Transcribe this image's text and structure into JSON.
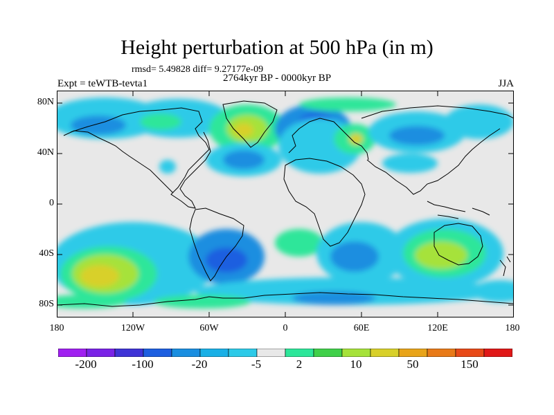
{
  "title": "Height perturbation at 500 hPa (in m)",
  "stats": "rmsd= 5.49828 diff= 9.27177e-09",
  "period": "2764kyr BP - 0000kyr BP",
  "expt": "Expt = teWTB-tevta1",
  "season": "JJA",
  "y_labels": [
    "80N",
    "40N",
    "0",
    "40S",
    "80S"
  ],
  "x_labels": [
    "180",
    "120W",
    "60W",
    "0",
    "60E",
    "120E",
    "180"
  ],
  "colorbar_labels": [
    "-200",
    "-100",
    "-20",
    "-5",
    "2",
    "10",
    "50",
    "150"
  ],
  "colorbar_colors": [
    "#a020f0",
    "#7a23e6",
    "#3f33d6",
    "#1e5fe0",
    "#1a8ee0",
    "#1ab0e6",
    "#2dcae8",
    "#e8e8e8",
    "#2de69a",
    "#40d04a",
    "#a6e23a",
    "#d8d02a",
    "#e8a41a",
    "#e87a18",
    "#e84a18",
    "#e01818"
  ]
}
